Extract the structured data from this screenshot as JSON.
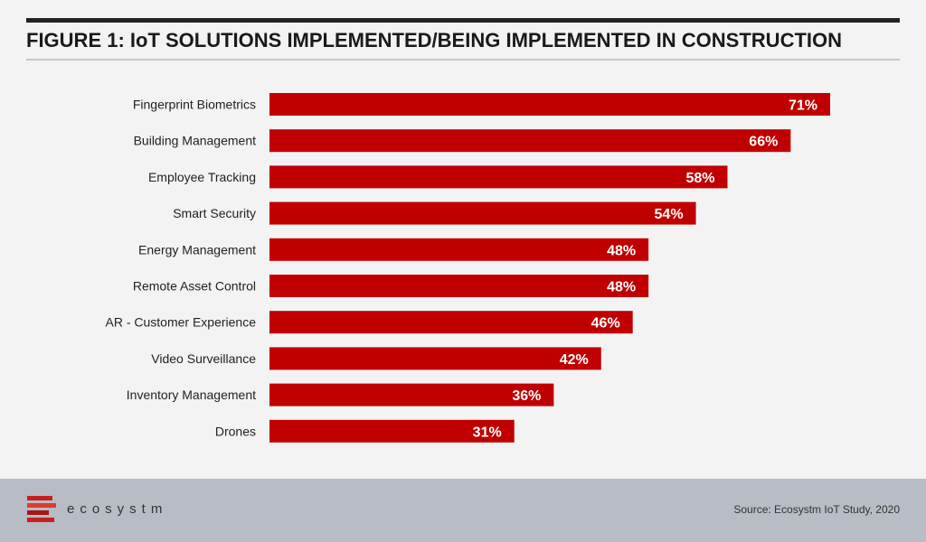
{
  "title": "FIGURE 1: IoT SOLUTIONS IMPLEMENTED/BEING IMPLEMENTED IN CONSTRUCTION",
  "chart_data": {
    "type": "bar",
    "orientation": "horizontal",
    "categories": [
      "Fingerprint Biometrics",
      "Building Management",
      "Employee Tracking",
      "Smart Security",
      "Energy Management",
      "Remote Asset Control",
      "AR - Customer Experience",
      "Video Surveillance",
      "Inventory Management",
      "Drones"
    ],
    "values": [
      71,
      66,
      58,
      54,
      48,
      48,
      46,
      42,
      36,
      31
    ],
    "value_labels": [
      "71%",
      "66%",
      "58%",
      "54%",
      "48%",
      "48%",
      "46%",
      "42%",
      "36%",
      "31%"
    ],
    "bar_color": "#c00000",
    "label_color": "#ffffff",
    "xlim": [
      0,
      71
    ],
    "grid": false,
    "legend": "none"
  },
  "footer": {
    "logo_text": "ecosystm",
    "source": "Source: Ecosystm IoT Study, 2020"
  },
  "colors": {
    "background": "#f3f3f3",
    "footer_band": "#b7bcc5",
    "accent": "#c00000"
  }
}
